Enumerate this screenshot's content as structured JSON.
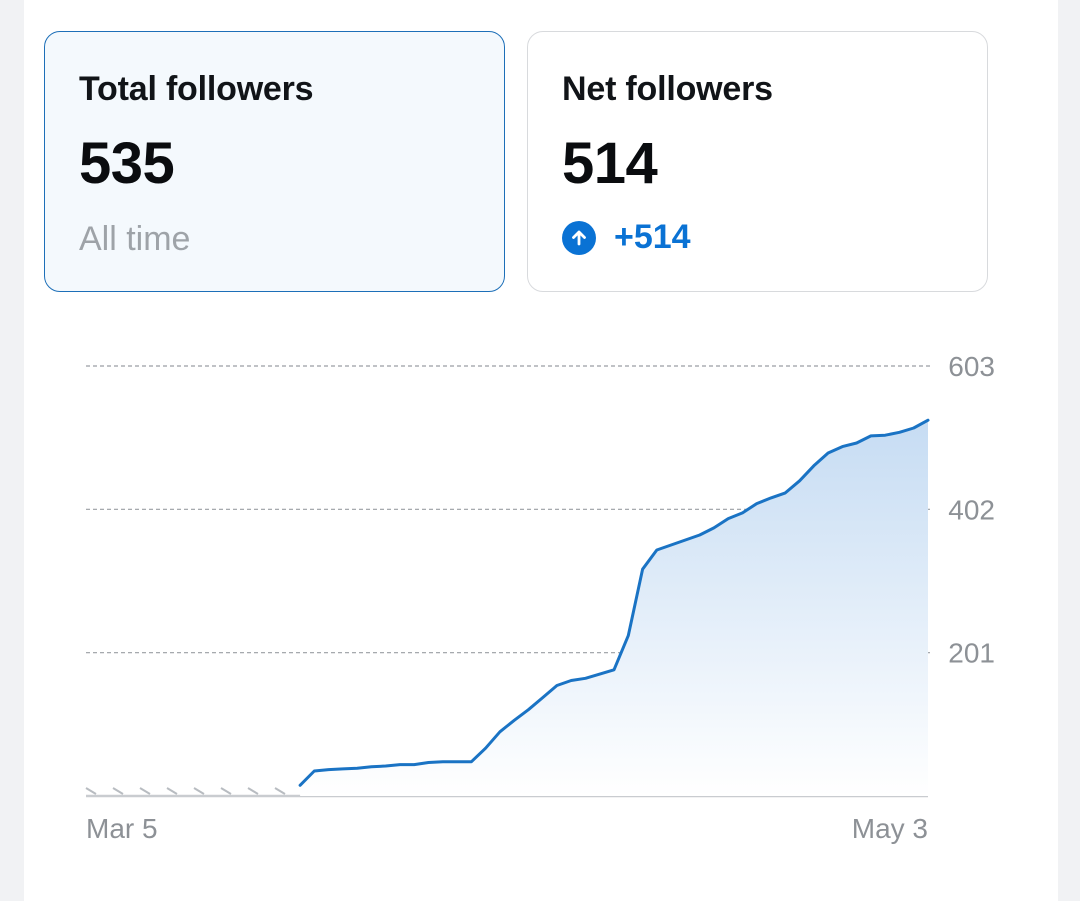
{
  "cards": [
    {
      "title": "Total followers",
      "value": "535",
      "subtitle": "All time",
      "selected": true
    },
    {
      "title": "Net followers",
      "value": "514",
      "change": "+514",
      "change_icon": "arrow-up-icon",
      "selected": false
    }
  ],
  "colors": {
    "accent": "#0a72d4",
    "line": "#1a73c4",
    "area_top": "#c6dcf3",
    "area_bottom": "#ffffff",
    "grid": "#9a9ea3",
    "muted_text": "#9ea3a8"
  },
  "chart_data": {
    "type": "area",
    "title": "",
    "xlabel": "",
    "ylabel": "",
    "x_tick_labels": [
      "Mar 5",
      "May 3"
    ],
    "y_tick_labels": [
      "201",
      "402",
      "603"
    ],
    "y_ticks": [
      201,
      402,
      603
    ],
    "ylim": [
      0,
      603
    ],
    "grid": true,
    "legend": "none",
    "no_data_segment": {
      "from_index": 0,
      "to_index": 14
    },
    "series": [
      {
        "values": [
          null,
          null,
          null,
          null,
          null,
          null,
          null,
          null,
          null,
          null,
          null,
          null,
          null,
          null,
          null,
          15,
          35,
          37,
          38,
          39,
          41,
          42,
          44,
          44,
          47,
          48,
          48,
          48,
          67,
          90,
          106,
          121,
          138,
          155,
          162,
          165,
          171,
          177,
          225,
          318,
          345,
          352,
          359,
          366,
          376,
          389,
          397,
          410,
          418,
          425,
          442,
          463,
          481,
          490,
          495,
          505,
          506,
          510,
          516,
          527
        ]
      }
    ]
  }
}
